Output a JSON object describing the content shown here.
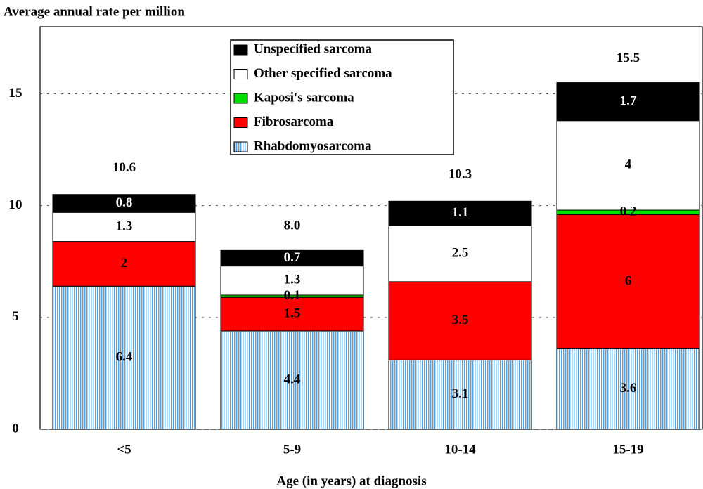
{
  "chart_data": {
    "type": "stacked-bar",
    "y_label": "Average annual rate per million",
    "x_label": "Age (in years) at diagnosis",
    "categories": [
      "<5",
      "5-9",
      "10-14",
      "15-19"
    ],
    "series": [
      {
        "name": "Rhabdomyosarcoma",
        "color": "#3b8fd9",
        "pattern": "vertical-hatch",
        "values": [
          6.4,
          4.4,
          3.1,
          3.6
        ]
      },
      {
        "name": "Fibrosarcoma",
        "color": "#ff0000",
        "values": [
          2,
          1.5,
          3.5,
          6
        ]
      },
      {
        "name": "Kaposi's sarcoma",
        "color": "#00e000",
        "values": [
          null,
          0.1,
          null,
          0.2
        ]
      },
      {
        "name": "Other specified sarcoma",
        "color": "#ffffff",
        "values": [
          1.3,
          1.3,
          2.5,
          4
        ]
      },
      {
        "name": "Unspecified sarcoma",
        "color": "#000000",
        "values": [
          0.8,
          0.7,
          1.1,
          1.7
        ]
      }
    ],
    "totals": {
      "values": [
        10.6,
        8.0,
        10.3,
        15.5
      ],
      "value_labels": [
        "10.6",
        "8.0",
        "10.3",
        "15.5"
      ]
    },
    "ylim": [
      0,
      18
    ],
    "yticks": [
      0,
      5,
      10,
      15
    ],
    "grid": true,
    "legend": "top"
  }
}
